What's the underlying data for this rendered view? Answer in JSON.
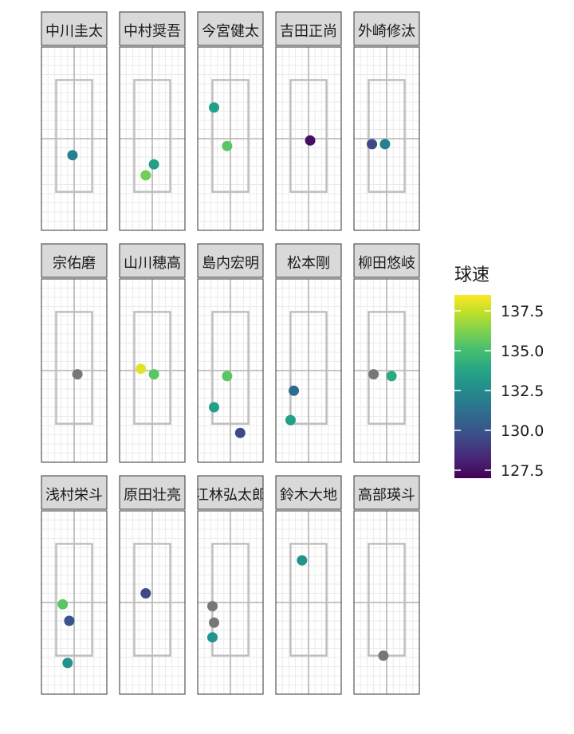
{
  "chart_data": {
    "type": "scatter",
    "facet_layout": {
      "rows": 3,
      "cols": 5
    },
    "x_range": [
      -1.0,
      1.0
    ],
    "y_range": [
      0.0,
      5.0
    ],
    "strike_zone": {
      "x": [
        -0.55,
        0.55
      ],
      "y": [
        1.05,
        4.1
      ]
    },
    "legend": {
      "title": "球速",
      "position": "right",
      "min": 127.0,
      "max": 138.5,
      "ticks": [
        127.5,
        130.0,
        132.5,
        135.0,
        137.5
      ],
      "tick_labels": [
        "127.5",
        "130.0",
        "132.5",
        "135.0",
        "137.5"
      ],
      "colormap": "viridis"
    },
    "na_color": "#777777",
    "panels": [
      {
        "name": "中川圭太",
        "points": [
          {
            "x": -0.05,
            "y": 2.05,
            "speed": 132.0
          }
        ]
      },
      {
        "name": "中村奨吾",
        "points": [
          {
            "x": -0.2,
            "y": 1.5,
            "speed": 136.0
          },
          {
            "x": 0.05,
            "y": 1.8,
            "speed": 133.5
          }
        ]
      },
      {
        "name": "今宮健太",
        "points": [
          {
            "x": -0.5,
            "y": 3.35,
            "speed": 133.5
          },
          {
            "x": -0.1,
            "y": 2.3,
            "speed": 135.5
          }
        ]
      },
      {
        "name": "吉田正尚",
        "points": [
          {
            "x": 0.05,
            "y": 2.45,
            "speed": 127.5
          }
        ]
      },
      {
        "name": "外崎修汰",
        "points": [
          {
            "x": -0.45,
            "y": 2.35,
            "speed": 129.5
          },
          {
            "x": -0.05,
            "y": 2.35,
            "speed": 132.0
          }
        ]
      },
      {
        "name": "宗佑磨",
        "points": [
          {
            "x": 0.1,
            "y": 2.4,
            "speed": null
          }
        ]
      },
      {
        "name": "山川穂高",
        "points": [
          {
            "x": -0.35,
            "y": 2.55,
            "speed": 138.0
          },
          {
            "x": 0.05,
            "y": 2.4,
            "speed": 135.5
          }
        ]
      },
      {
        "name": "島内宏明",
        "points": [
          {
            "x": -0.1,
            "y": 2.35,
            "speed": 135.5
          },
          {
            "x": -0.5,
            "y": 1.5,
            "speed": 133.5
          },
          {
            "x": 0.3,
            "y": 0.8,
            "speed": 129.5
          }
        ]
      },
      {
        "name": "松本剛",
        "points": [
          {
            "x": -0.45,
            "y": 1.95,
            "speed": 131.0
          },
          {
            "x": -0.55,
            "y": 1.15,
            "speed": 133.5
          }
        ]
      },
      {
        "name": "柳田悠岐",
        "points": [
          {
            "x": -0.4,
            "y": 2.4,
            "speed": null
          },
          {
            "x": 0.15,
            "y": 2.35,
            "speed": 134.0
          }
        ]
      },
      {
        "name": "浅村栄斗",
        "points": [
          {
            "x": -0.35,
            "y": 2.45,
            "speed": 135.5
          },
          {
            "x": -0.15,
            "y": 2.0,
            "speed": 130.0
          },
          {
            "x": -0.2,
            "y": 0.85,
            "speed": 133.0
          }
        ]
      },
      {
        "name": "原田壮亮",
        "points": [
          {
            "x": -0.2,
            "y": 2.75,
            "speed": 129.5
          }
        ]
      },
      {
        "name": "江林弘太郎",
        "points": [
          {
            "x": -0.55,
            "y": 2.4,
            "speed": null
          },
          {
            "x": -0.5,
            "y": 1.95,
            "speed": null
          },
          {
            "x": -0.55,
            "y": 1.55,
            "speed": 133.0
          }
        ]
      },
      {
        "name": "鈴木大地",
        "points": [
          {
            "x": -0.2,
            "y": 3.65,
            "speed": 133.0
          }
        ]
      },
      {
        "name": "高部瑛斗",
        "points": [
          {
            "x": -0.1,
            "y": 1.05,
            "speed": null
          }
        ]
      }
    ]
  }
}
